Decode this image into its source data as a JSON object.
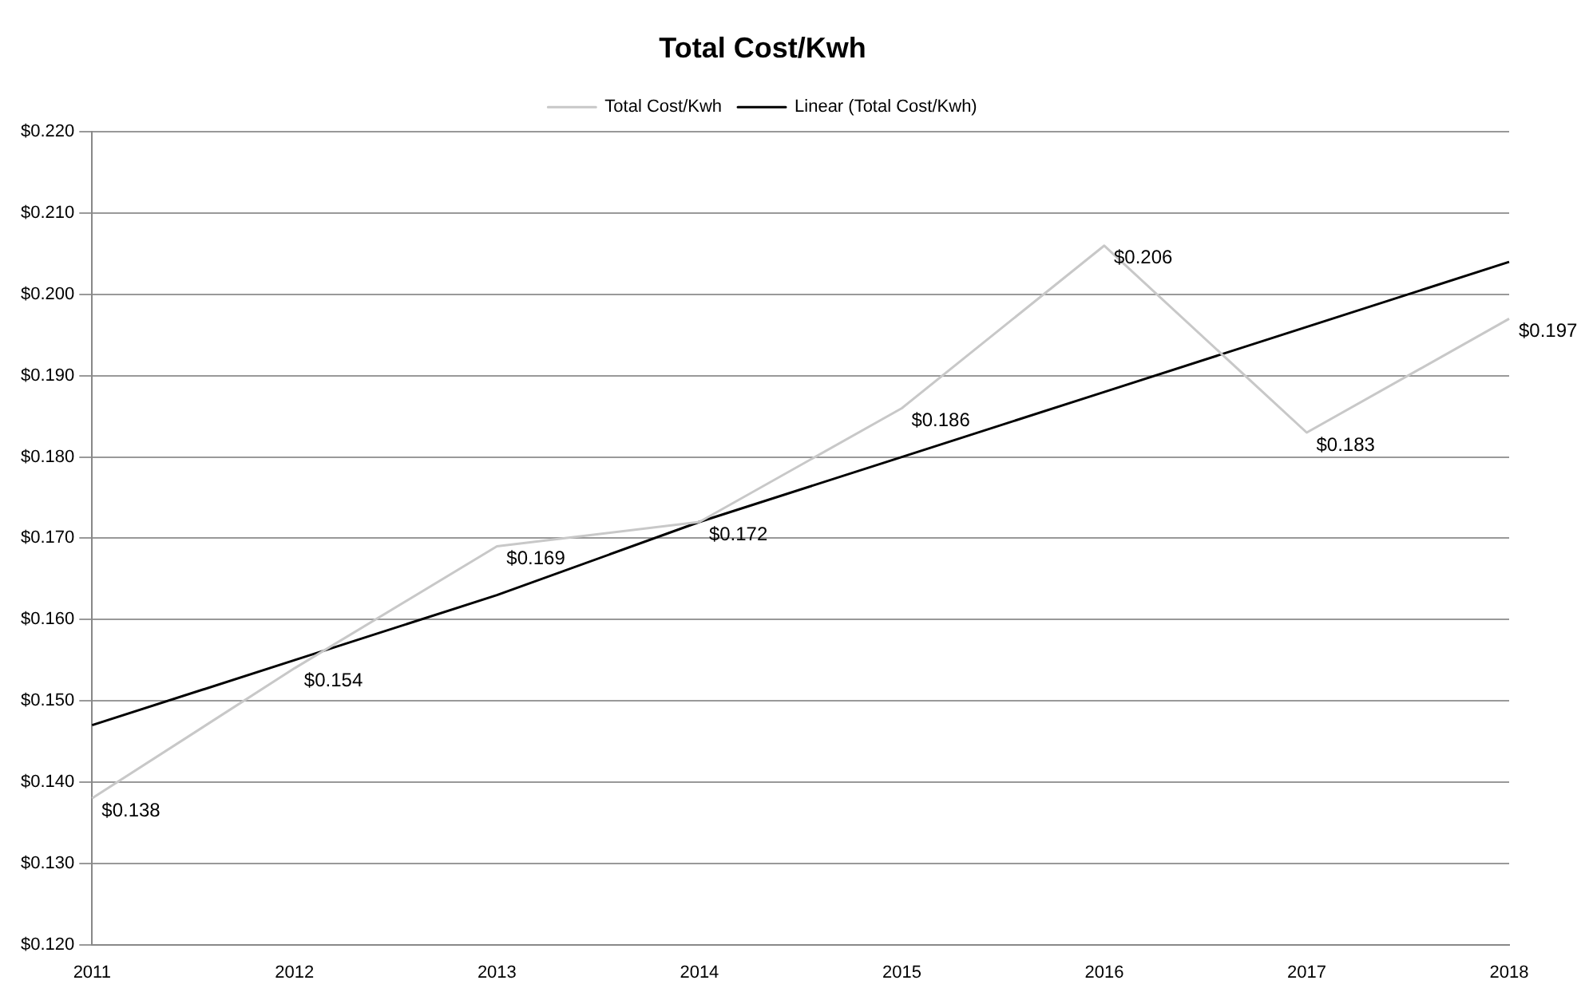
{
  "chart_data": {
    "type": "line",
    "title": "Total Cost/Kwh",
    "categories": [
      "2011",
      "2012",
      "2013",
      "2014",
      "2015",
      "2016",
      "2017",
      "2018"
    ],
    "series": [
      {
        "name": "Total Cost/Kwh",
        "color": "#c8c8c8",
        "values": [
          0.138,
          0.154,
          0.169,
          0.172,
          0.186,
          0.206,
          0.183,
          0.197
        ],
        "value_labels": [
          "$0.138",
          "$0.154",
          "$0.169",
          "$0.172",
          "$0.186",
          "$0.206",
          "$0.183",
          "$0.197"
        ]
      },
      {
        "name": "Linear (Total Cost/Kwh)",
        "color": "#000000",
        "values": [
          0.147,
          0.155,
          0.163,
          0.172,
          0.18,
          0.188,
          0.196,
          0.204
        ]
      }
    ],
    "ylim": [
      0.12,
      0.22
    ],
    "yticks": [
      {
        "value": 0.12,
        "label": "$0.120"
      },
      {
        "value": 0.13,
        "label": "$0.130"
      },
      {
        "value": 0.14,
        "label": "$0.140"
      },
      {
        "value": 0.15,
        "label": "$0.150"
      },
      {
        "value": 0.16,
        "label": "$0.160"
      },
      {
        "value": 0.17,
        "label": "$0.170"
      },
      {
        "value": 0.18,
        "label": "$0.180"
      },
      {
        "value": 0.19,
        "label": "$0.190"
      },
      {
        "value": 0.2,
        "label": "$0.200"
      },
      {
        "value": 0.21,
        "label": "$0.210"
      },
      {
        "value": 0.22,
        "label": "$0.220"
      }
    ],
    "grid": "y",
    "legend": "top",
    "line_style": "solid",
    "marker": "none"
  }
}
